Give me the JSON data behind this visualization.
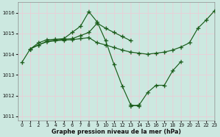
{
  "background_color": "#cce8e0",
  "grid_color": "#e8d0d8",
  "line_color": "#1a5c1a",
  "xlabel": "Graphe pression niveau de la mer (hPa)",
  "ylim": [
    1010.8,
    1016.5
  ],
  "xlim": [
    -0.5,
    23
  ],
  "yticks": [
    1011,
    1012,
    1013,
    1014,
    1015,
    1016
  ],
  "xticks": [
    0,
    1,
    2,
    3,
    4,
    5,
    6,
    7,
    8,
    9,
    10,
    11,
    12,
    13,
    14,
    15,
    16,
    17,
    18,
    19,
    20,
    21,
    22,
    23
  ],
  "series": [
    {
      "x": [
        0,
        1,
        2,
        3,
        4,
        5,
        6,
        7,
        8,
        9,
        10,
        11,
        12,
        13,
        14
      ],
      "y": [
        1013.6,
        1014.25,
        1014.55,
        1014.7,
        1014.72,
        1014.75,
        1015.05,
        1015.35,
        1016.05,
        1015.55,
        1014.65,
        1013.5,
        1012.45,
        1011.55,
        1011.5
      ]
    },
    {
      "x": [
        13,
        14,
        15,
        16,
        17,
        18,
        19
      ],
      "y": [
        1011.5,
        1011.55,
        1012.15,
        1012.5,
        1012.5,
        1013.2,
        1013.65
      ]
    },
    {
      "x": [
        1,
        2,
        3,
        4,
        5,
        6,
        7,
        8,
        9,
        10,
        11,
        12,
        13,
        14,
        15,
        16,
        17,
        18,
        19,
        20,
        21,
        22,
        23
      ],
      "y": [
        1014.25,
        1014.45,
        1014.6,
        1014.65,
        1014.68,
        1014.7,
        1014.75,
        1014.8,
        1014.55,
        1014.45,
        1014.32,
        1014.2,
        1014.1,
        1014.05,
        1014.0,
        1014.05,
        1014.1,
        1014.2,
        1014.35,
        1014.55,
        1015.25,
        1015.65,
        1016.1
      ]
    },
    {
      "x": [
        1,
        2,
        3,
        4,
        5,
        6,
        7,
        8,
        9,
        10,
        11,
        12,
        13
      ],
      "y": [
        1014.25,
        1014.45,
        1014.62,
        1014.68,
        1014.72,
        1014.75,
        1014.9,
        1015.05,
        1015.5,
        1015.25,
        1015.05,
        1014.85,
        1014.65
      ]
    }
  ]
}
